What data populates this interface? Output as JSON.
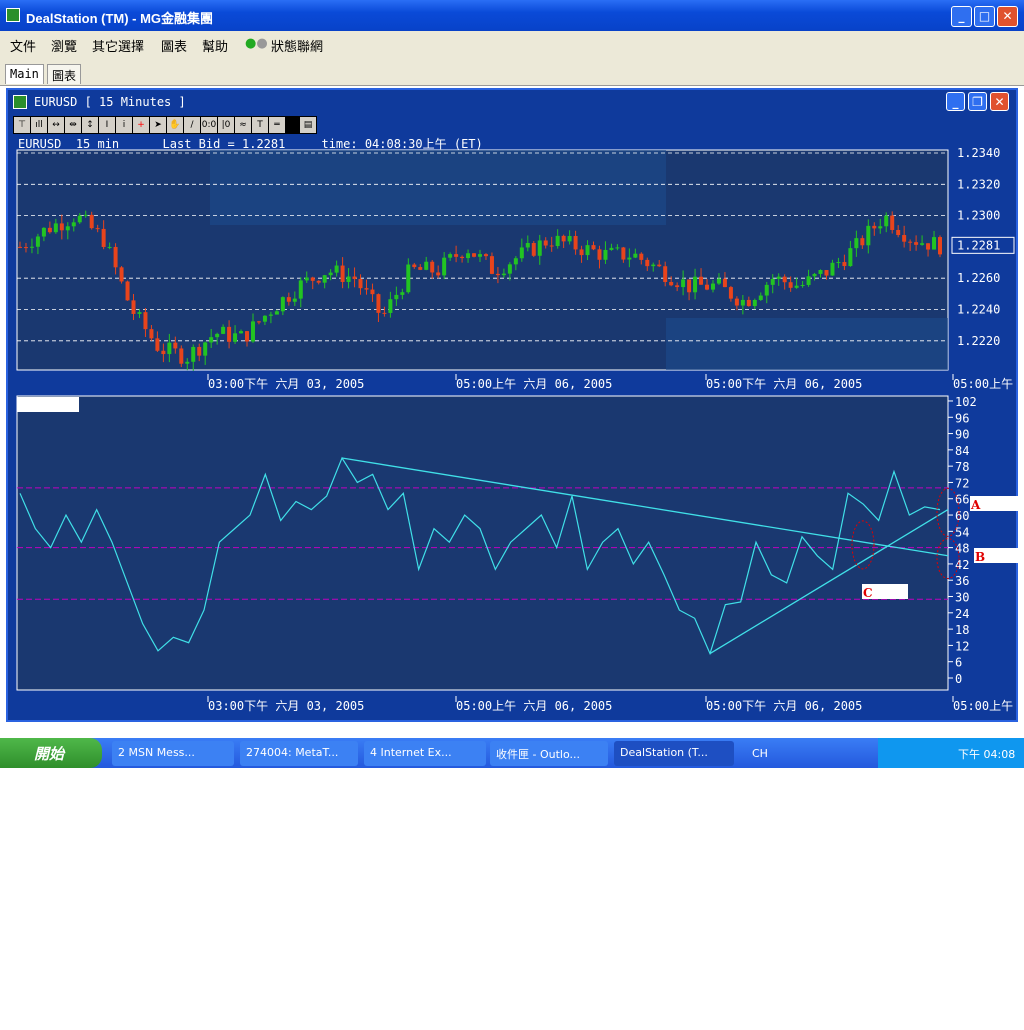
{
  "window": {
    "title": "DealStation (TM) - MG金融集團",
    "controls": [
      "minimize",
      "maximize",
      "close"
    ]
  },
  "menu": [
    "文件",
    "瀏覽",
    "其它選擇",
    "圖表",
    "幫助",
    "狀態聯網"
  ],
  "tabs": [
    {
      "label": "Main",
      "active": true
    },
    {
      "label": "圖表",
      "active": false
    }
  ],
  "chart_window": {
    "title": "EURUSD  [ 15 Minutes ]",
    "toolbar": [
      "pin-icon",
      "bar-chart-icon",
      "expand-horizontal-icon",
      "shrink-horizontal-icon",
      "expand-vertical-icon",
      "shrink-vertical-icon",
      "info-icon",
      "crosshair-icon",
      "pointer-icon",
      "hand-icon",
      "line-tool-icon",
      "horizontal-label-icon",
      "vertical-label-icon",
      "indicator-icon",
      "text-icon",
      "horizontal-line-icon",
      "properties-icon"
    ],
    "info": {
      "symbol": "EURUSD",
      "interval": "15 min",
      "last_bid": "Last Bid = 1.2281",
      "time": "time: 04:08:30上午 (ET)"
    }
  },
  "colors": {
    "up": "#22c422",
    "down": "#e8441c",
    "oscillator": "#40e0e8",
    "trendline": "#40e0e8",
    "level": "#c000c0",
    "annotation": "#e00000",
    "panel": "#1a3870"
  },
  "chart_data": [
    {
      "type": "candlestick",
      "symbol": "EURUSD",
      "interval": "15 min",
      "y_ticks": [
        "1.2340",
        "1.2320",
        "1.2300",
        "1.2281",
        "1.2260",
        "1.2240",
        "1.2220"
      ],
      "ylim": [
        1.2205,
        1.2345
      ],
      "last": 1.2281,
      "x_ticks": [
        "03:00下午  六月 03, 2005",
        "05:00上午  六月 06, 2005",
        "05:00下午  六月 06, 2005",
        "05:00上午"
      ],
      "close_path": [
        1.228,
        1.2292,
        1.23,
        1.2285,
        1.224,
        1.2215,
        1.221,
        1.2225,
        1.2222,
        1.224,
        1.2255,
        1.2265,
        1.226,
        1.2235,
        1.2265,
        1.2265,
        1.228,
        1.2265,
        1.2275,
        1.2285,
        1.228,
        1.2275,
        1.2275,
        1.2265,
        1.2255,
        1.2255,
        1.2245,
        1.226,
        1.2255,
        1.2265,
        1.228,
        1.23,
        1.2285,
        1.2281
      ]
    },
    {
      "type": "line",
      "y_ticks": [
        "102",
        "96",
        "90",
        "84",
        "78",
        "72",
        "66",
        "60",
        "54",
        "48",
        "42",
        "36",
        "30",
        "24",
        "18",
        "12",
        "6",
        "0"
      ],
      "ylim": [
        0,
        102
      ],
      "levels": [
        70,
        48,
        29
      ],
      "x_ticks": [
        "03:00下午  六月 03, 2005",
        "05:00上午  六月 06, 2005",
        "05:00下午  六月 06, 2005",
        "05:00上午"
      ],
      "values": [
        68,
        55,
        48,
        60,
        50,
        62,
        50,
        35,
        20,
        10,
        15,
        13,
        25,
        50,
        55,
        60,
        75,
        58,
        65,
        62,
        67,
        81,
        72,
        75,
        62,
        68,
        40,
        55,
        50,
        60,
        55,
        40,
        50,
        55,
        60,
        48,
        67,
        40,
        50,
        55,
        42,
        50,
        38,
        25,
        22,
        9,
        27,
        28,
        50,
        38,
        35,
        52,
        45,
        40,
        68,
        64,
        58,
        76,
        60,
        63,
        62
      ],
      "trendlines": [
        {
          "from_index": 21,
          "from": 81,
          "to": 45
        },
        {
          "from_index": 45,
          "from": 9,
          "to": 62
        }
      ],
      "annotations": [
        "A",
        "B",
        "C"
      ]
    }
  ],
  "taskbar": {
    "start": "開始",
    "tasks": [
      "2 MSN Mess...",
      "274004: MetaT...",
      "4 Internet Ex...",
      "收件匣 - Outlo...",
      "DealStation (T..."
    ],
    "lang": "CH",
    "clock": "下午 04:08"
  }
}
